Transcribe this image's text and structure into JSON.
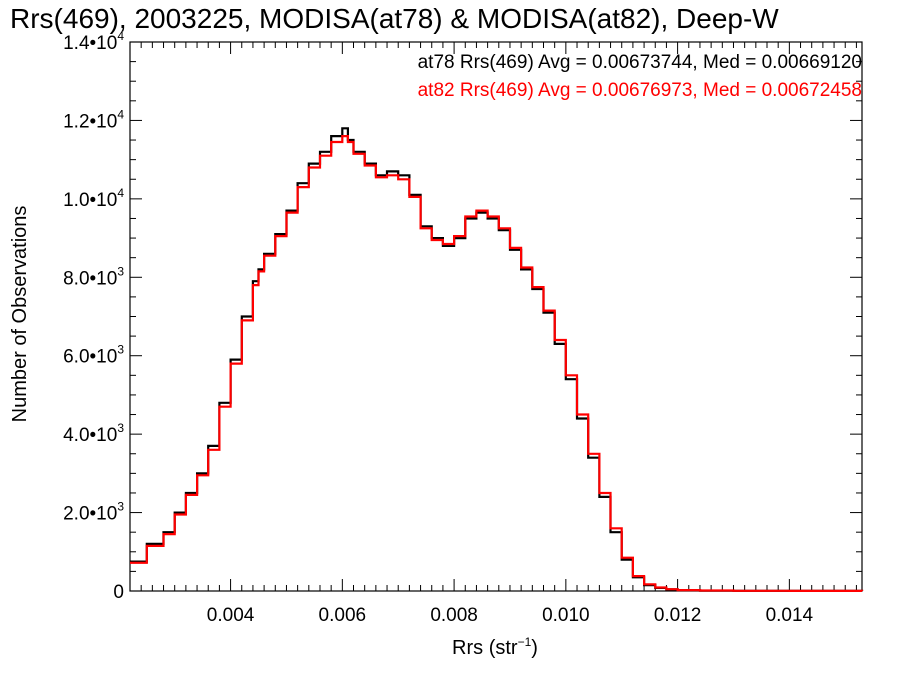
{
  "chart_data": {
    "type": "line",
    "title": "Rrs(469), 2003225, MODISA(at78) & MODISA(at82), Deep-W",
    "xlabel_main": "Rrs (str",
    "xlabel_exp": "−1",
    "xlabel_close": ")",
    "ylabel": "Number of Observations",
    "xlim": [
      0.0022,
      0.0153
    ],
    "ylim": [
      0,
      14000
    ],
    "x_ticks": [
      {
        "value": 0.004,
        "label": "0.004"
      },
      {
        "value": 0.006,
        "label": "0.006"
      },
      {
        "value": 0.008,
        "label": "0.008"
      },
      {
        "value": 0.01,
        "label": "0.010"
      },
      {
        "value": 0.012,
        "label": "0.012"
      },
      {
        "value": 0.014,
        "label": "0.014"
      }
    ],
    "y_ticks": [
      {
        "value": 0,
        "mant": "0",
        "exp": ""
      },
      {
        "value": 2000,
        "mant": "2.0•10",
        "exp": "3"
      },
      {
        "value": 4000,
        "mant": "4.0•10",
        "exp": "3"
      },
      {
        "value": 6000,
        "mant": "6.0•10",
        "exp": "3"
      },
      {
        "value": 8000,
        "mant": "8.0•10",
        "exp": "3"
      },
      {
        "value": 10000,
        "mant": "1.0•10",
        "exp": "4"
      },
      {
        "value": 12000,
        "mant": "1.2•10",
        "exp": "4"
      },
      {
        "value": 14000,
        "mant": "1.4•10",
        "exp": "4"
      }
    ],
    "series": [
      {
        "name": "at78",
        "color": "#000000",
        "legend": "at78 Rrs(469) Avg = 0.00673744, Med = 0.00669120",
        "x": [
          0.0022,
          0.0025,
          0.0028,
          0.003,
          0.0032,
          0.0034,
          0.0036,
          0.0038,
          0.004,
          0.0042,
          0.0044,
          0.0045,
          0.0046,
          0.0048,
          0.005,
          0.0052,
          0.0054,
          0.0056,
          0.0058,
          0.006,
          0.0061,
          0.0062,
          0.0064,
          0.0066,
          0.0068,
          0.007,
          0.0072,
          0.0074,
          0.0076,
          0.0078,
          0.008,
          0.0082,
          0.0084,
          0.0086,
          0.0088,
          0.009,
          0.0092,
          0.0094,
          0.0096,
          0.0098,
          0.01,
          0.0102,
          0.0104,
          0.0106,
          0.0108,
          0.011,
          0.0112,
          0.0114,
          0.0116,
          0.0118,
          0.012,
          0.0124,
          0.013,
          0.014,
          0.0153
        ],
        "y": [
          750,
          1200,
          1500,
          2000,
          2500,
          3000,
          3700,
          4800,
          5900,
          7000,
          7900,
          8200,
          8600,
          9100,
          9700,
          10400,
          10900,
          11200,
          11600,
          11800,
          11500,
          11200,
          10900,
          10600,
          10700,
          10600,
          10100,
          9300,
          9000,
          8800,
          9000,
          9500,
          9650,
          9500,
          9200,
          8700,
          8200,
          7700,
          7100,
          6300,
          5400,
          4400,
          3400,
          2400,
          1500,
          800,
          350,
          150,
          80,
          40,
          20,
          10,
          5,
          2,
          0
        ]
      },
      {
        "name": "at82",
        "color": "#ff0000",
        "legend": "at82 Rrs(469) Avg = 0.00676973, Med = 0.00672458",
        "x": [
          0.0022,
          0.0025,
          0.0028,
          0.003,
          0.0032,
          0.0034,
          0.0036,
          0.0038,
          0.004,
          0.0042,
          0.0044,
          0.0045,
          0.0046,
          0.0048,
          0.005,
          0.0052,
          0.0054,
          0.0056,
          0.0058,
          0.006,
          0.0061,
          0.0062,
          0.0064,
          0.0066,
          0.0068,
          0.007,
          0.0072,
          0.0074,
          0.0076,
          0.0078,
          0.008,
          0.0082,
          0.0084,
          0.0086,
          0.0088,
          0.009,
          0.0092,
          0.0094,
          0.0096,
          0.0098,
          0.01,
          0.0102,
          0.0104,
          0.0106,
          0.0108,
          0.011,
          0.0112,
          0.0114,
          0.0116,
          0.0118,
          0.012,
          0.0124,
          0.013,
          0.014,
          0.0153
        ],
        "y": [
          720,
          1150,
          1450,
          1950,
          2450,
          2950,
          3600,
          4700,
          5800,
          6900,
          7800,
          8150,
          8550,
          9050,
          9650,
          10300,
          10800,
          11100,
          11450,
          11600,
          11450,
          11150,
          10850,
          10550,
          10600,
          10500,
          10050,
          9250,
          8950,
          8850,
          9050,
          9550,
          9700,
          9550,
          9250,
          8750,
          8250,
          7750,
          7150,
          6400,
          5500,
          4500,
          3500,
          2500,
          1600,
          850,
          380,
          170,
          90,
          45,
          22,
          12,
          6,
          2,
          0
        ]
      }
    ],
    "grid": false,
    "legend_position": "top-right"
  }
}
